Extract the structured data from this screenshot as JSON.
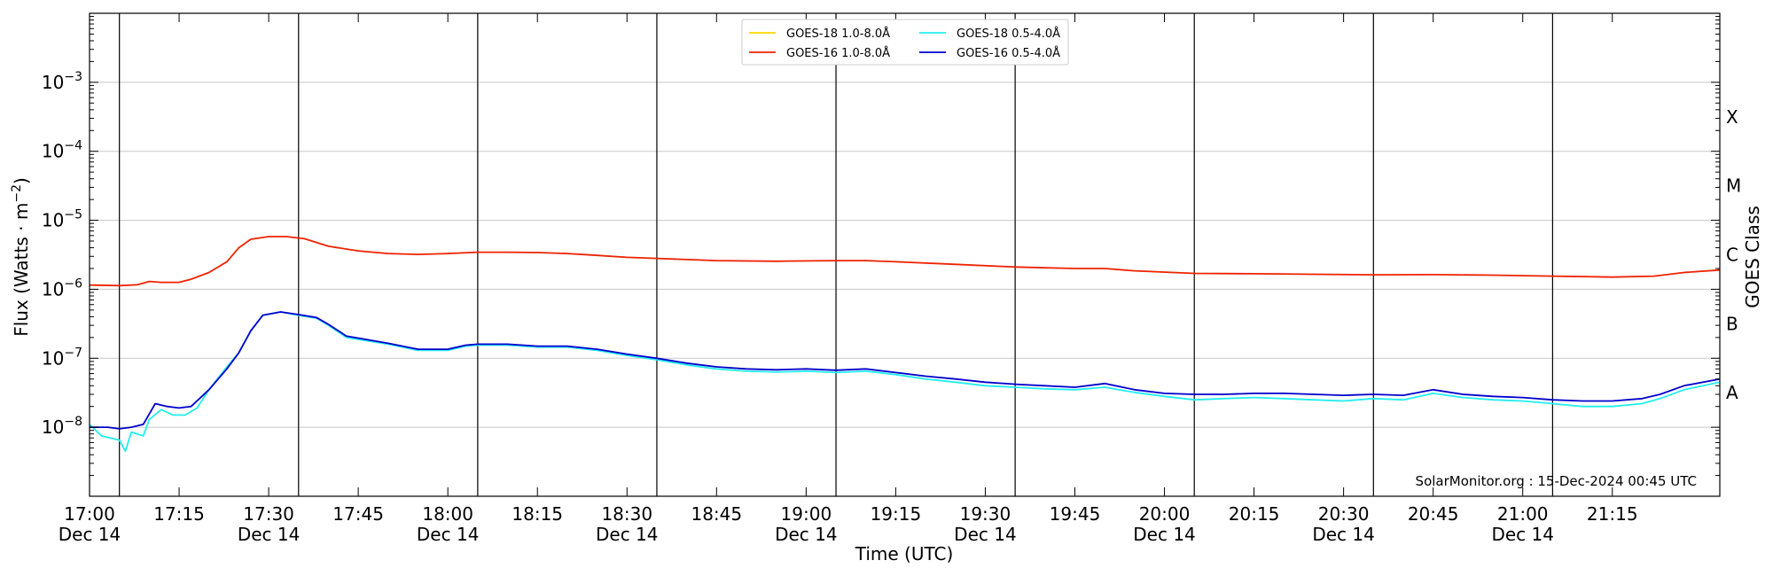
{
  "chart_data": {
    "type": "line",
    "xlabel": "Time (UTC)",
    "ylabel": "Flux (Watts · m",
    "ylabel_sup": "−2",
    "ylabel_close": ")",
    "y_scale": "log",
    "xlim": [
      "2024-12-14T16:55",
      "2024-12-14T21:28"
    ],
    "ylim": [
      1e-09,
      0.01
    ],
    "x_ticks": [
      {
        "time": "16:55",
        "label": "17:00"
      },
      {
        "time": "17:10",
        "label": "17:15"
      },
      {
        "time": "17:25",
        "label": "17:30"
      },
      {
        "time": "17:40",
        "label": "17:45"
      },
      {
        "time": "17:55",
        "label": "18:00"
      },
      {
        "time": "18:10",
        "label": "18:15"
      },
      {
        "time": "18:25",
        "label": "18:30"
      },
      {
        "time": "18:40",
        "label": "18:45"
      },
      {
        "time": "18:55",
        "label": "19:00"
      },
      {
        "time": "19:10",
        "label": "19:15"
      },
      {
        "time": "19:25",
        "label": "19:30"
      },
      {
        "time": "19:40",
        "label": "19:45"
      },
      {
        "time": "19:55",
        "label": "20:00"
      },
      {
        "time": "20:10",
        "label": "20:15"
      },
      {
        "time": "20:25",
        "label": "20:30"
      },
      {
        "time": "20:40",
        "label": "20:45"
      },
      {
        "time": "20:55",
        "label": "21:00"
      },
      {
        "time": "21:10",
        "label": "21:15"
      }
    ],
    "date_labels": [
      {
        "time": "16:55",
        "label": "Dec 14"
      },
      {
        "time": "17:25",
        "label": "Dec 14"
      },
      {
        "time": "17:55",
        "label": "Dec 14"
      },
      {
        "time": "18:25",
        "label": "Dec 14"
      },
      {
        "time": "18:55",
        "label": "Dec 14"
      },
      {
        "time": "19:25",
        "label": "Dec 14"
      },
      {
        "time": "19:55",
        "label": "Dec 14"
      },
      {
        "time": "20:25",
        "label": "Dec 14"
      },
      {
        "time": "20:55",
        "label": "Dec 14"
      }
    ],
    "vertical_lines": [
      "17:00",
      "17:30",
      "18:00",
      "18:30",
      "19:00",
      "19:30",
      "20:00",
      "20:30",
      "21:00"
    ],
    "y_ticks": [
      {
        "value": 1e-08,
        "mant": "10",
        "exp": "−8"
      },
      {
        "value": 1e-07,
        "mant": "10",
        "exp": "−7"
      },
      {
        "value": 1e-06,
        "mant": "10",
        "exp": "−6"
      },
      {
        "value": 1e-05,
        "mant": "10",
        "exp": "−5"
      },
      {
        "value": 0.0001,
        "mant": "10",
        "exp": "−4"
      },
      {
        "value": 0.001,
        "mant": "10",
        "exp": "−3"
      }
    ],
    "grid": "horizontal",
    "right_axis": {
      "label": "GOES Class",
      "classes": [
        {
          "label": "A",
          "value": 3.16e-08
        },
        {
          "label": "B",
          "value": 3.16e-07
        },
        {
          "label": "C",
          "value": 3.16e-06
        },
        {
          "label": "M",
          "value": 3.16e-05
        },
        {
          "label": "X",
          "value": 0.000316
        }
      ]
    },
    "legend_position": "top-center",
    "credit": "SolarMonitor.org : 15-Dec-2024 00:45 UTC",
    "series": [
      {
        "name": "GOES-18 1.0-8.0Å",
        "color": "#ffd700",
        "points": []
      },
      {
        "name": "GOES-16 1.0-8.0Å",
        "color": "#ee2200",
        "points": [
          [
            "16:55",
            1.15e-06
          ],
          [
            "17:00",
            1.13e-06
          ],
          [
            "17:03",
            1.16e-06
          ],
          [
            "17:05",
            1.3e-06
          ],
          [
            "17:07",
            1.26e-06
          ],
          [
            "17:10",
            1.26e-06
          ],
          [
            "17:12",
            1.4e-06
          ],
          [
            "17:15",
            1.75e-06
          ],
          [
            "17:18",
            2.5e-06
          ],
          [
            "17:20",
            4e-06
          ],
          [
            "17:22",
            5.3e-06
          ],
          [
            "17:25",
            5.8e-06
          ],
          [
            "17:28",
            5.8e-06
          ],
          [
            "17:31",
            5.4e-06
          ],
          [
            "17:35",
            4.2e-06
          ],
          [
            "17:40",
            3.6e-06
          ],
          [
            "17:45",
            3.3e-06
          ],
          [
            "17:50",
            3.2e-06
          ],
          [
            "17:55",
            3.3e-06
          ],
          [
            "18:00",
            3.45e-06
          ],
          [
            "18:05",
            3.45e-06
          ],
          [
            "18:10",
            3.4e-06
          ],
          [
            "18:15",
            3.3e-06
          ],
          [
            "18:20",
            3.1e-06
          ],
          [
            "18:25",
            2.9e-06
          ],
          [
            "18:30",
            2.8e-06
          ],
          [
            "18:40",
            2.6e-06
          ],
          [
            "18:50",
            2.55e-06
          ],
          [
            "19:00",
            2.6e-06
          ],
          [
            "19:05",
            2.6e-06
          ],
          [
            "19:10",
            2.5e-06
          ],
          [
            "19:20",
            2.3e-06
          ],
          [
            "19:30",
            2.1e-06
          ],
          [
            "19:40",
            2e-06
          ],
          [
            "19:45",
            2e-06
          ],
          [
            "19:50",
            1.85e-06
          ],
          [
            "20:00",
            1.7e-06
          ],
          [
            "20:10",
            1.68e-06
          ],
          [
            "20:20",
            1.65e-06
          ],
          [
            "20:30",
            1.62e-06
          ],
          [
            "20:40",
            1.63e-06
          ],
          [
            "20:50",
            1.6e-06
          ],
          [
            "21:00",
            1.55e-06
          ],
          [
            "21:10",
            1.5e-06
          ],
          [
            "21:17",
            1.55e-06
          ],
          [
            "21:22",
            1.75e-06
          ],
          [
            "21:28",
            1.9e-06
          ]
        ]
      },
      {
        "name": "GOES-18 0.5-4.0Å",
        "color": "#22eeee",
        "points": [
          [
            "16:55",
            1.1e-08
          ],
          [
            "16:57",
            7.5e-09
          ],
          [
            "17:00",
            6.5e-09
          ],
          [
            "17:01",
            4.5e-09
          ],
          [
            "17:02",
            8.5e-09
          ],
          [
            "17:04",
            7.5e-09
          ],
          [
            "17:05",
            1.3e-08
          ],
          [
            "17:07",
            1.8e-08
          ],
          [
            "17:09",
            1.5e-08
          ],
          [
            "17:11",
            1.5e-08
          ],
          [
            "17:13",
            1.9e-08
          ],
          [
            "17:15",
            3.5e-08
          ],
          [
            "17:18",
            7.5e-08
          ],
          [
            "17:20",
            1.2e-07
          ],
          [
            "17:22",
            2.5e-07
          ],
          [
            "17:24",
            4.2e-07
          ],
          [
            "17:27",
            4.7e-07
          ],
          [
            "17:30",
            4.2e-07
          ],
          [
            "17:33",
            3.8e-07
          ],
          [
            "17:35",
            3e-07
          ],
          [
            "17:38",
            2e-07
          ],
          [
            "17:45",
            1.6e-07
          ],
          [
            "17:50",
            1.3e-07
          ],
          [
            "17:55",
            1.3e-07
          ],
          [
            "17:58",
            1.5e-07
          ],
          [
            "18:00",
            1.55e-07
          ],
          [
            "18:05",
            1.55e-07
          ],
          [
            "18:10",
            1.45e-07
          ],
          [
            "18:15",
            1.45e-07
          ],
          [
            "18:20",
            1.3e-07
          ],
          [
            "18:25",
            1.1e-07
          ],
          [
            "18:30",
            9.5e-08
          ],
          [
            "18:35",
            8e-08
          ],
          [
            "18:40",
            7e-08
          ],
          [
            "18:45",
            6.5e-08
          ],
          [
            "18:50",
            6.3e-08
          ],
          [
            "18:55",
            6.5e-08
          ],
          [
            "19:00",
            6.2e-08
          ],
          [
            "19:05",
            6.5e-08
          ],
          [
            "19:10",
            5.8e-08
          ],
          [
            "19:15",
            5e-08
          ],
          [
            "19:20",
            4.5e-08
          ],
          [
            "19:25",
            4e-08
          ],
          [
            "19:30",
            3.8e-08
          ],
          [
            "19:35",
            3.6e-08
          ],
          [
            "19:40",
            3.5e-08
          ],
          [
            "19:45",
            3.8e-08
          ],
          [
            "19:50",
            3.2e-08
          ],
          [
            "19:55",
            2.8e-08
          ],
          [
            "20:00",
            2.5e-08
          ],
          [
            "20:05",
            2.6e-08
          ],
          [
            "20:10",
            2.7e-08
          ],
          [
            "20:15",
            2.6e-08
          ],
          [
            "20:20",
            2.5e-08
          ],
          [
            "20:25",
            2.4e-08
          ],
          [
            "20:30",
            2.6e-08
          ],
          [
            "20:35",
            2.5e-08
          ],
          [
            "20:40",
            3.1e-08
          ],
          [
            "20:45",
            2.7e-08
          ],
          [
            "20:50",
            2.5e-08
          ],
          [
            "20:55",
            2.4e-08
          ],
          [
            "21:00",
            2.2e-08
          ],
          [
            "21:05",
            2e-08
          ],
          [
            "21:10",
            2e-08
          ],
          [
            "21:15",
            2.2e-08
          ],
          [
            "21:18",
            2.6e-08
          ],
          [
            "21:22",
            3.5e-08
          ],
          [
            "21:28",
            4.5e-08
          ]
        ]
      },
      {
        "name": "GOES-16 0.5-4.0Å",
        "color": "#0000cc",
        "points": [
          [
            "16:55",
            1e-08
          ],
          [
            "16:58",
            1e-08
          ],
          [
            "17:00",
            9.5e-09
          ],
          [
            "17:02",
            1e-08
          ],
          [
            "17:04",
            1.1e-08
          ],
          [
            "17:06",
            2.2e-08
          ],
          [
            "17:08",
            2e-08
          ],
          [
            "17:10",
            1.9e-08
          ],
          [
            "17:12",
            2e-08
          ],
          [
            "17:15",
            3.5e-08
          ],
          [
            "17:18",
            7e-08
          ],
          [
            "17:20",
            1.2e-07
          ],
          [
            "17:22",
            2.5e-07
          ],
          [
            "17:24",
            4.2e-07
          ],
          [
            "17:27",
            4.7e-07
          ],
          [
            "17:30",
            4.3e-07
          ],
          [
            "17:33",
            3.9e-07
          ],
          [
            "17:35",
            3.1e-07
          ],
          [
            "17:38",
            2.1e-07
          ],
          [
            "17:45",
            1.65e-07
          ],
          [
            "17:50",
            1.35e-07
          ],
          [
            "17:55",
            1.35e-07
          ],
          [
            "17:58",
            1.55e-07
          ],
          [
            "18:00",
            1.6e-07
          ],
          [
            "18:05",
            1.6e-07
          ],
          [
            "18:10",
            1.5e-07
          ],
          [
            "18:15",
            1.5e-07
          ],
          [
            "18:20",
            1.35e-07
          ],
          [
            "18:25",
            1.15e-07
          ],
          [
            "18:30",
            1e-07
          ],
          [
            "18:35",
            8.5e-08
          ],
          [
            "18:40",
            7.5e-08
          ],
          [
            "18:45",
            7e-08
          ],
          [
            "18:50",
            6.8e-08
          ],
          [
            "18:55",
            7e-08
          ],
          [
            "19:00",
            6.7e-08
          ],
          [
            "19:05",
            7e-08
          ],
          [
            "19:10",
            6.2e-08
          ],
          [
            "19:15",
            5.5e-08
          ],
          [
            "19:20",
            5e-08
          ],
          [
            "19:25",
            4.5e-08
          ],
          [
            "19:30",
            4.2e-08
          ],
          [
            "19:35",
            4e-08
          ],
          [
            "19:40",
            3.8e-08
          ],
          [
            "19:45",
            4.3e-08
          ],
          [
            "19:50",
            3.5e-08
          ],
          [
            "19:55",
            3.1e-08
          ],
          [
            "20:00",
            3e-08
          ],
          [
            "20:05",
            3e-08
          ],
          [
            "20:10",
            3.1e-08
          ],
          [
            "20:15",
            3.1e-08
          ],
          [
            "20:20",
            3e-08
          ],
          [
            "20:25",
            2.9e-08
          ],
          [
            "20:30",
            3e-08
          ],
          [
            "20:35",
            2.9e-08
          ],
          [
            "20:40",
            3.5e-08
          ],
          [
            "20:45",
            3e-08
          ],
          [
            "20:50",
            2.8e-08
          ],
          [
            "20:55",
            2.7e-08
          ],
          [
            "21:00",
            2.5e-08
          ],
          [
            "21:05",
            2.4e-08
          ],
          [
            "21:10",
            2.4e-08
          ],
          [
            "21:15",
            2.6e-08
          ],
          [
            "21:18",
            3e-08
          ],
          [
            "21:22",
            4e-08
          ],
          [
            "21:28",
            5e-08
          ]
        ]
      }
    ]
  }
}
